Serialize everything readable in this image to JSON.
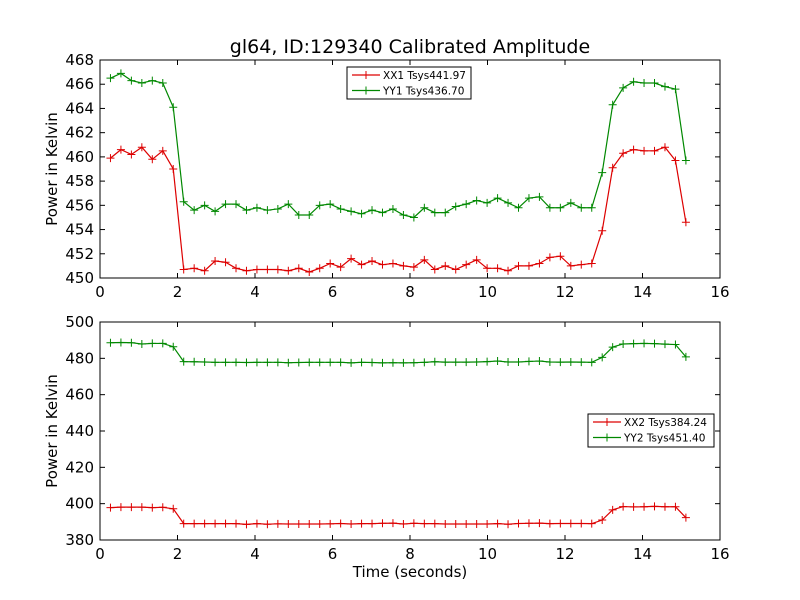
{
  "chart_data": [
    {
      "type": "line",
      "title": "gl64, ID:129340 Calibrated Amplitude",
      "xlabel": "",
      "ylabel": "Power in Kelvin",
      "xlim": [
        0,
        16
      ],
      "ylim": [
        450,
        468
      ],
      "xticks": [
        0,
        2,
        4,
        6,
        8,
        10,
        12,
        14,
        16
      ],
      "yticks": [
        450,
        452,
        454,
        456,
        458,
        460,
        462,
        464,
        466,
        468
      ],
      "grid": false,
      "legend_position": "top-center",
      "x": [
        0.27,
        0.54,
        0.81,
        1.08,
        1.35,
        1.62,
        1.89,
        2.16,
        2.43,
        2.7,
        2.97,
        3.24,
        3.51,
        3.78,
        4.05,
        4.32,
        4.59,
        4.86,
        5.13,
        5.4,
        5.67,
        5.94,
        6.21,
        6.48,
        6.75,
        7.02,
        7.29,
        7.56,
        7.83,
        8.1,
        8.37,
        8.64,
        8.91,
        9.18,
        9.45,
        9.72,
        9.99,
        10.26,
        10.53,
        10.8,
        11.07,
        11.34,
        11.61,
        11.88,
        12.15,
        12.42,
        12.69,
        12.96,
        13.23,
        13.5,
        13.77,
        14.04,
        14.31,
        14.58,
        14.85,
        15.12
      ],
      "series": [
        {
          "name": "XX1 Tsys441.97",
          "color": "#dd0000",
          "values": [
            459.9,
            460.6,
            460.2,
            460.8,
            459.8,
            460.5,
            459.0,
            450.7,
            450.8,
            450.6,
            451.4,
            451.3,
            450.8,
            450.6,
            450.7,
            450.7,
            450.7,
            450.6,
            450.8,
            450.5,
            450.8,
            451.2,
            450.9,
            451.6,
            451.1,
            451.4,
            451.1,
            451.2,
            451.0,
            450.9,
            451.5,
            450.7,
            451.0,
            450.7,
            451.1,
            451.5,
            450.8,
            450.8,
            450.6,
            451.0,
            451.0,
            451.2,
            451.7,
            451.8,
            451.0,
            451.1,
            451.2,
            453.9,
            459.1,
            460.3,
            460.6,
            460.5,
            460.5,
            460.8,
            459.7,
            454.6
          ]
        },
        {
          "name": "YY1 Tsys436.70",
          "color": "#008800",
          "values": [
            466.5,
            466.9,
            466.3,
            466.1,
            466.3,
            466.1,
            464.1,
            456.3,
            455.6,
            456.0,
            455.5,
            456.1,
            456.1,
            455.6,
            455.8,
            455.6,
            455.7,
            456.1,
            455.2,
            455.2,
            456.0,
            456.1,
            455.7,
            455.5,
            455.3,
            455.6,
            455.4,
            455.7,
            455.2,
            455.0,
            455.8,
            455.4,
            455.4,
            455.9,
            456.1,
            456.4,
            456.2,
            456.6,
            456.2,
            455.8,
            456.6,
            456.7,
            455.8,
            455.8,
            456.2,
            455.8,
            455.8,
            458.7,
            464.3,
            465.7,
            466.2,
            466.1,
            466.1,
            465.8,
            465.6,
            459.7
          ]
        }
      ]
    },
    {
      "type": "line",
      "title": "",
      "xlabel": "Time (seconds)",
      "ylabel": "Power in Kelvin",
      "xlim": [
        0,
        16
      ],
      "ylim": [
        380,
        500
      ],
      "xticks": [
        0,
        2,
        4,
        6,
        8,
        10,
        12,
        14,
        16
      ],
      "yticks": [
        380,
        400,
        420,
        440,
        460,
        480,
        500
      ],
      "grid": false,
      "legend_position": "center-right",
      "x": [
        0.27,
        0.54,
        0.81,
        1.08,
        1.35,
        1.62,
        1.89,
        2.16,
        2.43,
        2.7,
        2.97,
        3.24,
        3.51,
        3.78,
        4.05,
        4.32,
        4.59,
        4.86,
        5.13,
        5.4,
        5.67,
        5.94,
        6.21,
        6.48,
        6.75,
        7.02,
        7.29,
        7.56,
        7.83,
        8.1,
        8.37,
        8.64,
        8.91,
        9.18,
        9.45,
        9.72,
        9.99,
        10.26,
        10.53,
        10.8,
        11.07,
        11.34,
        11.61,
        11.88,
        12.15,
        12.42,
        12.69,
        12.96,
        13.23,
        13.5,
        13.77,
        14.04,
        14.31,
        14.58,
        14.85,
        15.12
      ],
      "series": [
        {
          "name": "XX2 Tsys384.24",
          "color": "#dd0000",
          "values": [
            397.8,
            398.1,
            398.1,
            398.1,
            397.8,
            398.0,
            397.2,
            389.0,
            389.0,
            389.0,
            389.0,
            389.0,
            389.0,
            388.6,
            389.0,
            388.7,
            388.9,
            388.8,
            388.8,
            388.8,
            388.8,
            388.9,
            389.1,
            388.8,
            389.0,
            389.0,
            389.2,
            389.3,
            388.8,
            389.2,
            389.0,
            389.0,
            388.8,
            388.8,
            388.8,
            388.8,
            388.8,
            389.0,
            388.7,
            389.1,
            389.2,
            389.3,
            389.0,
            389.1,
            389.1,
            389.1,
            389.0,
            391.0,
            396.6,
            398.4,
            398.2,
            398.3,
            398.5,
            398.3,
            398.3,
            392.3
          ]
        },
        {
          "name": "YY2 Tsys451.40",
          "color": "#008800",
          "values": [
            488.6,
            488.7,
            488.6,
            487.9,
            488.2,
            488.2,
            486.4,
            478.2,
            478.1,
            478.0,
            477.8,
            477.8,
            477.8,
            477.7,
            477.8,
            477.8,
            477.8,
            477.6,
            477.7,
            477.8,
            477.8,
            477.8,
            477.8,
            477.5,
            477.8,
            477.7,
            477.5,
            477.6,
            477.5,
            477.6,
            477.8,
            478.1,
            477.9,
            477.9,
            477.9,
            478.0,
            478.2,
            478.5,
            478.0,
            478.0,
            478.3,
            478.5,
            478.0,
            477.9,
            478.0,
            477.9,
            477.8,
            480.5,
            486.2,
            487.9,
            488.1,
            488.2,
            488.1,
            487.8,
            487.6,
            480.8
          ]
        }
      ]
    }
  ]
}
